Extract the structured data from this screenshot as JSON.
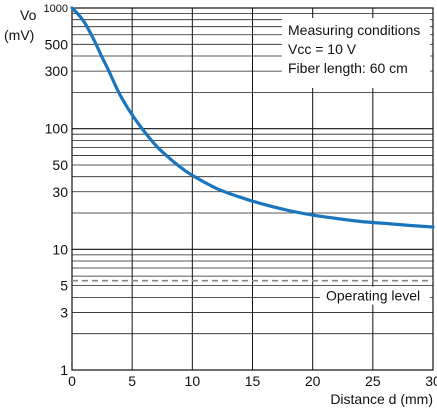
{
  "chart_data": {
    "type": "line",
    "title": "",
    "xlabel": "Distance d (mm)",
    "ylabel": "Vo",
    "ylabel_unit": "(mV)",
    "xlim": [
      0,
      30
    ],
    "ylim": [
      1,
      1000
    ],
    "yscale": "log",
    "grid": true,
    "x_ticks": [
      0,
      5,
      10,
      15,
      20,
      25,
      30
    ],
    "y_ticks": [
      {
        "value": 1,
        "label": "1"
      },
      {
        "value": 3,
        "label": "3"
      },
      {
        "value": 5,
        "label": "5"
      },
      {
        "value": 10,
        "label": "10"
      },
      {
        "value": 30,
        "label": "30"
      },
      {
        "value": 50,
        "label": "50"
      },
      {
        "value": 100,
        "label": "100"
      },
      {
        "value": 300,
        "label": "300"
      },
      {
        "value": 500,
        "label": "500"
      },
      {
        "value": 1000,
        "label": "1000"
      }
    ],
    "series": [
      {
        "color": "#1b75bc",
        "x": [
          0,
          0.5,
          1,
          1.5,
          2,
          2.5,
          3,
          4,
          5,
          6,
          7,
          8,
          9,
          10,
          12,
          14,
          16,
          18,
          20,
          22,
          24,
          26,
          28,
          30
        ],
        "y": [
          1000,
          890,
          770,
          630,
          500,
          390,
          310,
          190,
          130,
          95,
          72,
          58,
          48,
          41,
          32,
          27,
          23.5,
          21,
          19.2,
          18,
          17,
          16.4,
          15.8,
          15.3
        ]
      }
    ],
    "reference_line": {
      "value": 5.5,
      "label": "Operating level",
      "style": "dashed",
      "color": "#888888"
    },
    "annotations": [
      "Measuring conditions",
      "Vcc = 10 V",
      "Fiber length: 60 cm"
    ]
  }
}
